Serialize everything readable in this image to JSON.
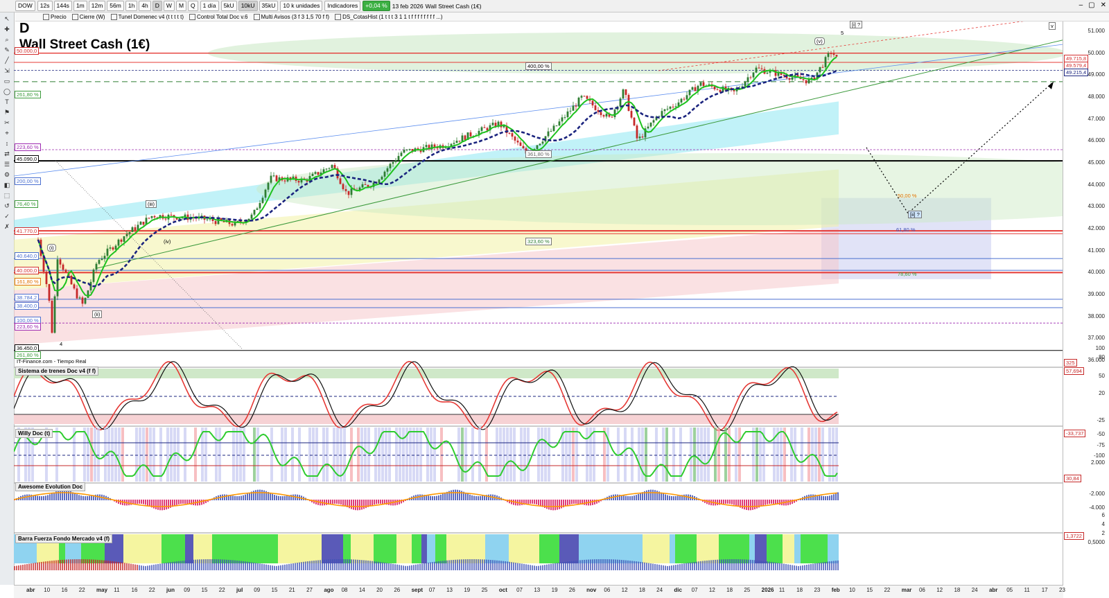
{
  "toolbar": {
    "symbol": "DOW",
    "timeframes": [
      "12s",
      "144s",
      "1m",
      "12m",
      "56m",
      "1h",
      "4h",
      "D",
      "W",
      "M",
      "Q"
    ],
    "period": "1 día",
    "units": [
      "5kU",
      "10kU",
      "35kU"
    ],
    "units_select": "10 k unidades",
    "indicators": "Indicadores",
    "change": "+0,04 %",
    "date": "13 feb 2026",
    "instrument": "Wall Street Cash (1€)"
  },
  "legend": {
    "items": [
      "Precio",
      "Cierre (W)",
      "Tunel Domenec v4 (t t t t t)",
      "Control Total Doc v.6",
      "Multi Avisos (3 f 3 1,5 70 f f)",
      "DS_CotasHist (1 t t t 3 1 1 t f f f f f f f f ...)"
    ]
  },
  "main": {
    "letter": "D",
    "title": "Wall Street Cash (1€)",
    "source": "IT-Finance.com - Tiempo Real",
    "y_ticks": [
      "51.000",
      "50.000",
      "49.000",
      "48.000",
      "47.000",
      "46.000",
      "45.000",
      "44.000",
      "43.000",
      "42.000",
      "41.000",
      "40.000",
      "39.000",
      "38.000",
      "37.000",
      "36.000"
    ],
    "price_labels": [
      {
        "text": "49.715,8",
        "color": "#d32f2f"
      },
      {
        "text": "49.579,4",
        "color": "#d32f2f"
      },
      {
        "text": "49.215,4",
        "color": "#1a237e"
      }
    ],
    "left_levels": [
      {
        "text": "50.000,0",
        "color": "#d32f2f"
      },
      {
        "text": "261,80 %",
        "color": "#3c9a3c"
      },
      {
        "text": "223,60 %",
        "color": "#9c27b0"
      },
      {
        "text": "45.090,0",
        "color": "#000"
      },
      {
        "text": "200,00 %",
        "color": "#4a6fd0"
      },
      {
        "text": "76,40 %",
        "color": "#3c9a3c"
      },
      {
        "text": "41.770,0",
        "color": "#d32f2f"
      },
      {
        "text": "40.640,0",
        "color": "#4a6fd0"
      },
      {
        "text": "40.000,0",
        "color": "#d32f2f"
      },
      {
        "text": "161,80 %",
        "color": "#e07000"
      },
      {
        "text": "38.784,2",
        "color": "#4a6fd0"
      },
      {
        "text": "38.400,0",
        "color": "#4a6fd0"
      },
      {
        "text": "100,00 %",
        "color": "#4a6fd0"
      },
      {
        "text": "223,60 %",
        "color": "#9c27b0"
      },
      {
        "text": "36.450,0",
        "color": "#000"
      },
      {
        "text": "261,80 %",
        "color": "#3c9a3c"
      }
    ],
    "annotations": {
      "pct400": "400,00 %",
      "pct361": "361,80 %",
      "pct323": "323,60 %",
      "wave_v": "(v)",
      "wave_5": "5",
      "wave_i_q": "[i] ?",
      "wave_ii_q": "[ii] ?",
      "wave_iii": "(iii)",
      "wave_i": "(i)",
      "wave_ii": "(ii)",
      "wave_iv": "(iv)",
      "wave_4": "4",
      "fib_61": "61,80 %",
      "fib_50": "50,00 %",
      "fib_78": "78,60 %",
      "v_marker": "v"
    }
  },
  "panes": [
    {
      "title": "Sistema de trenes Doc v4 (f f)",
      "ticks": [
        "100",
        "80",
        "50",
        "20"
      ],
      "labels": [
        "325",
        "57,694"
      ]
    },
    {
      "title": "Willy Doc (t)",
      "ticks": [
        "-25",
        "-50",
        "-75",
        "-100"
      ],
      "labels": [
        "-33,737"
      ]
    },
    {
      "title": "Awesome Evolution Doc",
      "ticks": [
        "2.000",
        "-2.000",
        "-4.000"
      ],
      "labels": [
        "30,84"
      ]
    },
    {
      "title": "Barra Fuerza Fondo Mercado v4 (f)",
      "ticks": [
        "6",
        "4",
        "2",
        "0,5000"
      ],
      "labels": [
        "1,3722"
      ]
    }
  ],
  "x_axis": [
    "abr",
    "10",
    "16",
    "22",
    "may",
    "11",
    "16",
    "22",
    "jun",
    "09",
    "15",
    "22",
    "jul",
    "09",
    "15",
    "21",
    "27",
    "ago",
    "08",
    "14",
    "20",
    "26",
    "sept",
    "07",
    "13",
    "19",
    "25",
    "oct",
    "07",
    "13",
    "19",
    "26",
    "nov",
    "06",
    "12",
    "18",
    "24",
    "dic",
    "07",
    "12",
    "18",
    "25",
    "2026",
    "11",
    "18",
    "23",
    "feb",
    "10",
    "15",
    "22",
    "mar",
    "06",
    "12",
    "18",
    "24",
    "abr",
    "05",
    "11",
    "17",
    "23"
  ],
  "colors": {
    "up": "#2e7d32",
    "down": "#c62828",
    "ma_green": "#1ec21e",
    "ma_blue": "#1a237e",
    "red_line": "#e53935",
    "fill_green": "#c9e8c2",
    "fill_pink": "#f6c9cc",
    "fill_yellow": "#f2f2a6",
    "fill_cyan": "#8ee7f2",
    "fill_lav": "#d9dcf5"
  }
}
